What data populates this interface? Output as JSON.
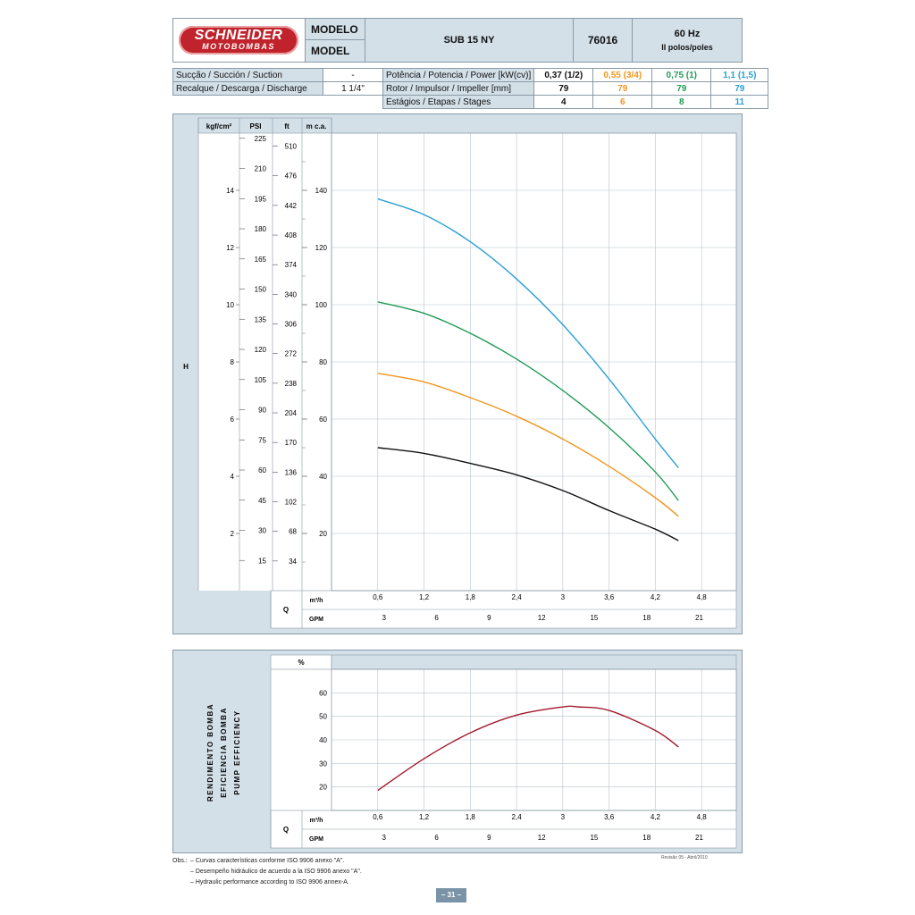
{
  "header": {
    "brand_top": "SCHNEIDER",
    "brand_bottom": "MOTOBOMBAS",
    "modelo_label": "MODELO",
    "model_label": "MODEL",
    "model_name": "SUB 15 NY",
    "code": "76016",
    "freq": "60 Hz",
    "poles": "II polos/poles"
  },
  "specs": {
    "suction_label": "Sucção / Succión / Suction",
    "suction_value": "-",
    "discharge_label": "Recalque / Descarga / Discharge",
    "discharge_value": "1 1/4\"",
    "power_label": "Potência / Potencia / Power [kW(cv)]",
    "rotor_label": "Rotor / Impulsor / Impeller [mm]",
    "stages_label": "Estágios / Etapas / Stages",
    "columns": [
      {
        "power": "0,37 (1/2)",
        "rotor": "79",
        "stages": "4",
        "color": "#111111"
      },
      {
        "power": "0,55 (3/4)",
        "rotor": "79",
        "stages": "6",
        "color": "#f0961e"
      },
      {
        "power": "0,75 (1)",
        "rotor": "79",
        "stages": "8",
        "color": "#1f9a55"
      },
      {
        "power": "1,1 (1,5)",
        "rotor": "79",
        "stages": "11",
        "color": "#2a9fd6"
      }
    ]
  },
  "chart_data": [
    {
      "type": "line",
      "h_axis_label": "H",
      "unit_headers": [
        "kgf/cm²",
        "PSI",
        "ft",
        "m c.a."
      ],
      "kgf_ticks": [
        "2",
        "4",
        "6",
        "8",
        "10",
        "12",
        "14"
      ],
      "psi_ticks": [
        "15",
        "30",
        "45",
        "60",
        "75",
        "90",
        "105",
        "120",
        "135",
        "150",
        "165",
        "180",
        "195",
        "210",
        "225"
      ],
      "ft_ticks": [
        "34",
        "68",
        "102",
        "136",
        "170",
        "204",
        "238",
        "272",
        "306",
        "340",
        "374",
        "408",
        "442",
        "476",
        "510"
      ],
      "m_ticks": [
        "20",
        "40",
        "60",
        "80",
        "100",
        "120",
        "140"
      ],
      "x_label": "Q",
      "x_unit_m3h": "m³/h",
      "x_unit_gpm": "GPM",
      "x_ticks_m3h": [
        "0,6",
        "1,2",
        "1,8",
        "2,4",
        "3",
        "3,6",
        "4,2",
        "4,8"
      ],
      "x_ticks_gpm": [
        "3",
        "6",
        "9",
        "12",
        "15",
        "18",
        "21"
      ],
      "xlim": [
        0,
        5.25
      ],
      "ylim": [
        0,
        160
      ],
      "series": [
        {
          "color": "#111111",
          "x": [
            0.6,
            1.2,
            1.8,
            2.4,
            3.0,
            3.6,
            4.2,
            4.5
          ],
          "y": [
            50,
            48,
            44.5,
            40.5,
            35,
            28,
            21.5,
            17.5
          ]
        },
        {
          "color": "#f0961e",
          "x": [
            0.6,
            1.2,
            1.8,
            2.4,
            3.0,
            3.6,
            4.2,
            4.5
          ],
          "y": [
            76,
            73,
            67.5,
            61,
            53,
            43.5,
            32.5,
            26
          ]
        },
        {
          "color": "#1f9a55",
          "x": [
            0.6,
            1.2,
            1.8,
            2.4,
            3.0,
            3.6,
            4.2,
            4.5
          ],
          "y": [
            101,
            97,
            90,
            81,
            70,
            57,
            41.5,
            31.5
          ]
        },
        {
          "color": "#2a9fd6",
          "x": [
            0.6,
            1.2,
            1.8,
            2.4,
            3.0,
            3.6,
            4.2,
            4.5
          ],
          "y": [
            137,
            131.5,
            122,
            109,
            93,
            74,
            53,
            43
          ]
        }
      ]
    },
    {
      "type": "line",
      "y_label_lines": [
        "RENDIMENTO BOMBA",
        "EFICIENCIA BOMBA",
        "PUMP EFFICIENCY"
      ],
      "y_unit": "%",
      "y_ticks": [
        "20",
        "30",
        "40",
        "50",
        "60"
      ],
      "x_label": "Q",
      "x_unit_m3h": "m³/h",
      "x_unit_gpm": "GPM",
      "x_ticks_m3h": [
        "0,6",
        "1,2",
        "1,8",
        "2,4",
        "3",
        "3,6",
        "4,2",
        "4,8"
      ],
      "x_ticks_gpm": [
        "3",
        "6",
        "9",
        "12",
        "15",
        "18",
        "21"
      ],
      "xlim": [
        0,
        5.25
      ],
      "ylim": [
        10,
        70
      ],
      "series": [
        {
          "color": "#a0182a",
          "x": [
            0.6,
            1.2,
            1.8,
            2.4,
            3.0,
            3.2,
            3.6,
            4.2,
            4.5
          ],
          "y": [
            18.5,
            32,
            43,
            50.5,
            54,
            54,
            52.5,
            44,
            37
          ]
        }
      ]
    }
  ],
  "notes": {
    "obs_label": "Obs.:",
    "lines": [
      "–  Curvas características conforme ISO 9906 anexo \"A\".",
      "–  Desempeño hidráulico de acuerdo a la ISO 9906 anexo \"A\".",
      "–  Hydraulic performance according to ISO 9906 annex-A."
    ],
    "revision": "Revisão 05 - Abril/2010"
  },
  "page_number": "– 31 –"
}
